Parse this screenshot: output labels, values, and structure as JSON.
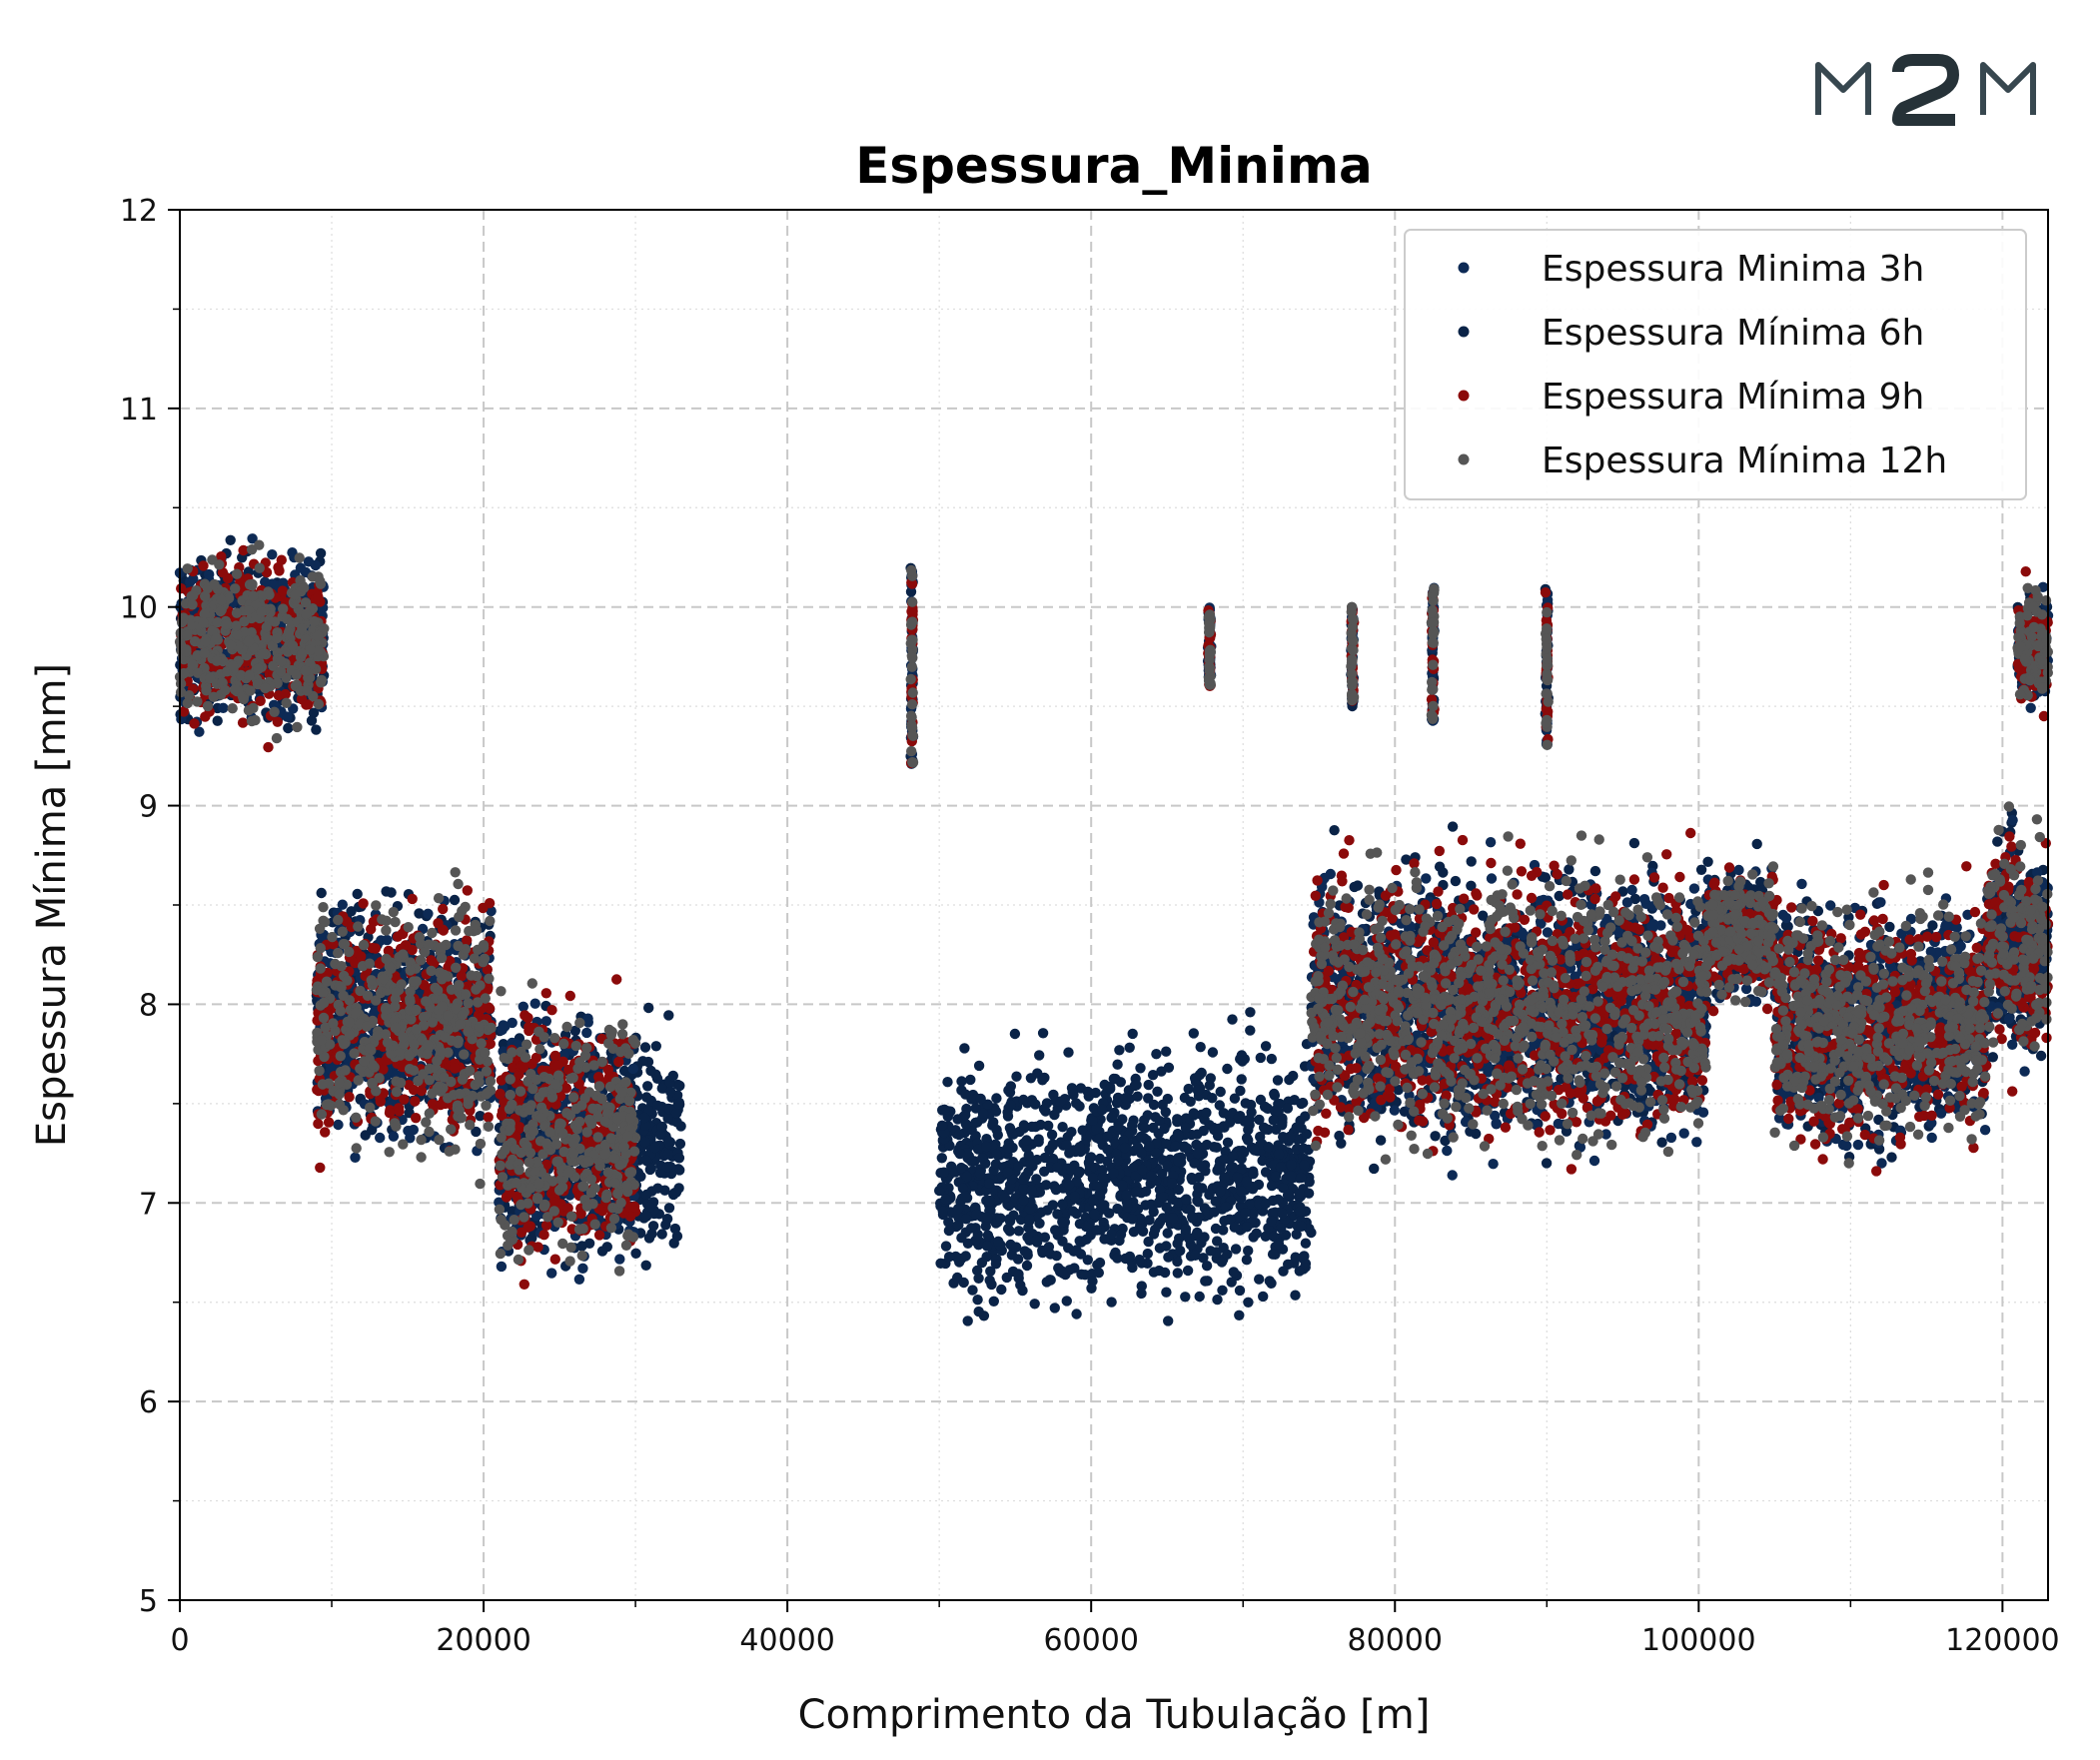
{
  "logo": {
    "text": "M2M",
    "colors": {
      "primary": "#37474f",
      "accent": "#263238"
    }
  },
  "chart_data": {
    "type": "scatter",
    "title": "Espessura_Minima",
    "xlabel": "Comprimento da Tubulação [m]",
    "ylabel": "Espessura Mínima [mm]",
    "xlim": [
      0,
      123000
    ],
    "ylim": [
      5,
      12
    ],
    "xticks": [
      "0",
      "20000",
      "40000",
      "60000",
      "80000",
      "100000",
      "120000"
    ],
    "xtick_values": [
      0,
      20000,
      40000,
      60000,
      80000,
      100000,
      120000
    ],
    "yticks": [
      "5",
      "6",
      "7",
      "8",
      "9",
      "10",
      "11",
      "12"
    ],
    "ytick_values": [
      5,
      6,
      7,
      8,
      9,
      10,
      11,
      12
    ],
    "grid": true,
    "legend_position": "top-right",
    "series": [
      {
        "name": "Espessura Minima 3h",
        "color": "#0d2a55"
      },
      {
        "name": "Espessura Mínima 6h",
        "color": "#0a2347"
      },
      {
        "name": "Espessura Mínima 9h",
        "color": "#8b0a0a"
      },
      {
        "name": "Espessura Mínima 12h",
        "color": "#555555"
      }
    ],
    "clusters": [
      {
        "x": [
          0,
          9500
        ],
        "y": [
          9.3,
          10.4
        ],
        "series": [
          "3h",
          "6h",
          "9h",
          "12h"
        ]
      },
      {
        "x": [
          9000,
          20500
        ],
        "y": [
          7.1,
          8.7
        ],
        "series": [
          "3h",
          "6h",
          "9h",
          "12h"
        ]
      },
      {
        "x": [
          21000,
          30000
        ],
        "y": [
          6.5,
          8.2
        ],
        "series": [
          "3h",
          "6h",
          "9h",
          "12h"
        ]
      },
      {
        "x": [
          30000,
          33000
        ],
        "y": [
          6.6,
          8.0
        ],
        "series": [
          "6h"
        ]
      },
      {
        "x": [
          50000,
          60000
        ],
        "y": [
          6.3,
          7.9
        ],
        "series": [
          "6h"
        ]
      },
      {
        "x": [
          60000,
          74500
        ],
        "y": [
          6.3,
          8.0
        ],
        "series": [
          "6h"
        ]
      },
      {
        "x": [
          74500,
          100500
        ],
        "y": [
          7.1,
          8.9
        ],
        "series": [
          "3h",
          "6h",
          "9h",
          "12h"
        ]
      },
      {
        "x": [
          100500,
          105000
        ],
        "y": [
          7.9,
          8.8
        ],
        "series": [
          "3h",
          "6h",
          "9h",
          "12h"
        ]
      },
      {
        "x": [
          105000,
          119000
        ],
        "y": [
          7.1,
          8.7
        ],
        "series": [
          "3h",
          "6h",
          "9h",
          "12h"
        ]
      },
      {
        "x": [
          119000,
          123000
        ],
        "y": [
          7.6,
          9.0
        ],
        "series": [
          "3h",
          "6h",
          "9h",
          "12h"
        ]
      },
      {
        "x": [
          121000,
          123000
        ],
        "y": [
          9.4,
          10.2
        ],
        "series": [
          "3h",
          "6h",
          "9h",
          "12h"
        ]
      }
    ],
    "spikes": [
      {
        "x": 48200,
        "y": [
          9.2,
          10.2
        ]
      },
      {
        "x": 67800,
        "y": [
          9.6,
          10.0
        ]
      },
      {
        "x": 77200,
        "y": [
          9.5,
          10.0
        ]
      },
      {
        "x": 82500,
        "y": [
          9.4,
          10.1
        ]
      },
      {
        "x": 90000,
        "y": [
          9.3,
          10.1
        ]
      }
    ]
  }
}
